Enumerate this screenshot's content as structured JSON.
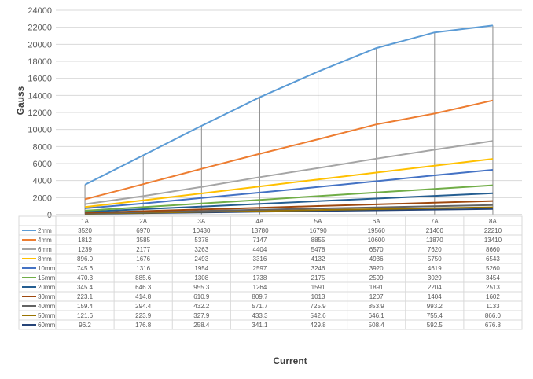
{
  "chart_data": {
    "type": "line",
    "title": "",
    "xlabel": "Current",
    "ylabel": "Gauss",
    "ylim": [
      0,
      24000
    ],
    "yticks": [
      0,
      2000,
      4000,
      6000,
      8000,
      10000,
      12000,
      14000,
      16000,
      18000,
      20000,
      22000,
      24000
    ],
    "grid": true,
    "legend": "data-table-below",
    "categories": [
      "1A",
      "2A",
      "3A",
      "4A",
      "5A",
      "6A",
      "7A",
      "8A"
    ],
    "series": [
      {
        "name": "2mm",
        "color": "#5b9bd5",
        "values": [
          3520,
          6970,
          10430,
          13780,
          16790,
          19560,
          21400,
          22210
        ],
        "labels": [
          "3520",
          "6970",
          "10430",
          "13780",
          "16790",
          "19560",
          "21400",
          "22210"
        ]
      },
      {
        "name": "4mm",
        "color": "#ed7d31",
        "values": [
          1812,
          3585,
          5378,
          7147,
          8855,
          10600,
          11870,
          13410
        ],
        "labels": [
          "1812",
          "3585",
          "5378",
          "7147",
          "8855",
          "10600",
          "11870",
          "13410"
        ]
      },
      {
        "name": "6mm",
        "color": "#a5a5a5",
        "values": [
          1239,
          2177,
          3263,
          4404,
          5478,
          6570,
          7620,
          8660
        ],
        "labels": [
          "1239",
          "2177",
          "3263",
          "4404",
          "5478",
          "6570",
          "7620",
          "8660"
        ]
      },
      {
        "name": "8mm",
        "color": "#ffc000",
        "values": [
          896.0,
          1676,
          2493,
          3316,
          4132,
          4936,
          5750,
          6543
        ],
        "labels": [
          "896.0",
          "1676",
          "2493",
          "3316",
          "4132",
          "4936",
          "5750",
          "6543"
        ]
      },
      {
        "name": "10mm",
        "color": "#4472c4",
        "values": [
          745.6,
          1316,
          1954,
          2597,
          3246,
          3920,
          4619,
          5260
        ],
        "labels": [
          "745.6",
          "1316",
          "1954",
          "2597",
          "3246",
          "3920",
          "4619",
          "5260"
        ]
      },
      {
        "name": "15mm",
        "color": "#70ad47",
        "values": [
          470.3,
          885.6,
          1308,
          1738,
          2175,
          2599,
          3029,
          3454
        ],
        "labels": [
          "470.3",
          "885.6",
          "1308",
          "1738",
          "2175",
          "2599",
          "3029",
          "3454"
        ]
      },
      {
        "name": "20mm",
        "color": "#255e91",
        "values": [
          345.4,
          646.3,
          955.3,
          1264,
          1591,
          1891,
          2204,
          2513
        ],
        "labels": [
          "345.4",
          "646.3",
          "955.3",
          "1264",
          "1591",
          "1891",
          "2204",
          "2513"
        ]
      },
      {
        "name": "30mm",
        "color": "#9e480e",
        "values": [
          223.1,
          414.8,
          610.9,
          809.7,
          1013,
          1207,
          1404,
          1602
        ],
        "labels": [
          "223.1",
          "414.8",
          "610.9",
          "809.7",
          "1013",
          "1207",
          "1404",
          "1602"
        ]
      },
      {
        "name": "40mm",
        "color": "#636363",
        "values": [
          159.4,
          294.4,
          432.2,
          571.7,
          725.9,
          853.9,
          993.2,
          1133
        ],
        "labels": [
          "159.4",
          "294.4",
          "432.2",
          "571.7",
          "725.9",
          "853.9",
          "993.2",
          "1133"
        ]
      },
      {
        "name": "50mm",
        "color": "#997300",
        "values": [
          121.6,
          223.9,
          327.9,
          433.3,
          542.6,
          646.1,
          755.4,
          866.0
        ],
        "labels": [
          "121.6",
          "223.9",
          "327.9",
          "433.3",
          "542.6",
          "646.1",
          "755.4",
          "866.0"
        ]
      },
      {
        "name": "60mm",
        "color": "#264478",
        "values": [
          96.2,
          176.8,
          258.4,
          341.1,
          429.8,
          508.4,
          592.5,
          676.8
        ],
        "labels": [
          "96.2",
          "176.8",
          "258.4",
          "341.1",
          "429.8",
          "508.4",
          "592.5",
          "676.8"
        ]
      }
    ]
  }
}
